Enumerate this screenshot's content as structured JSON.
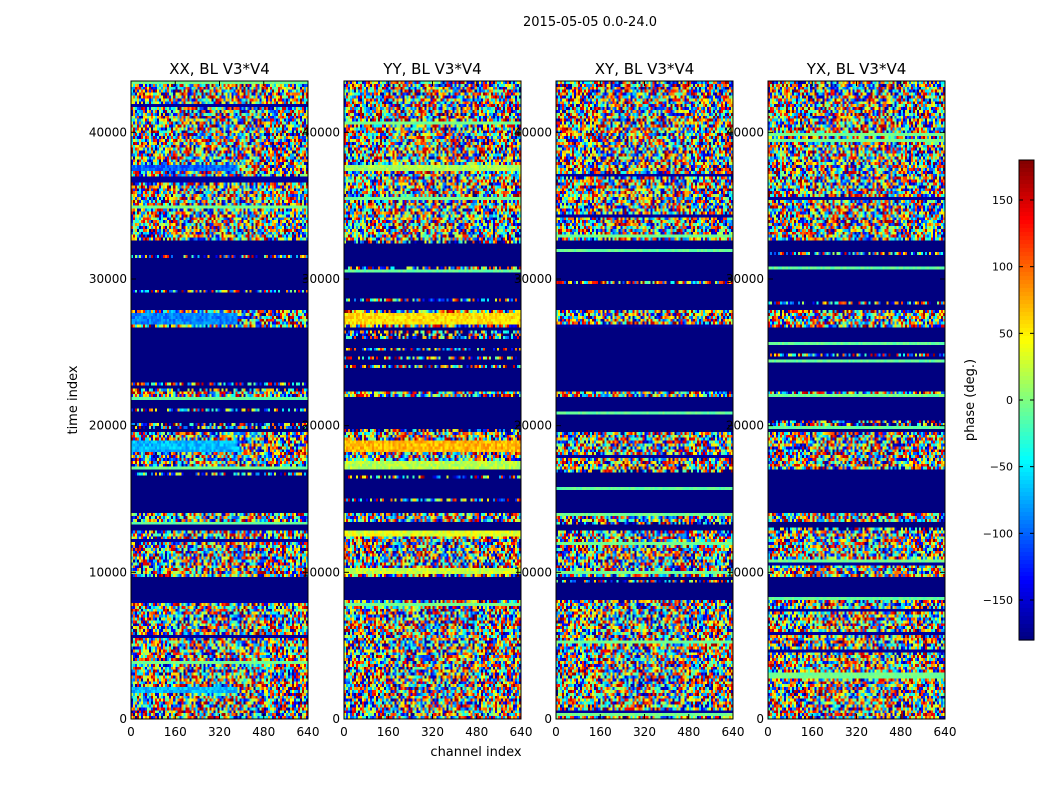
{
  "chart_data": {
    "type": "heatmap",
    "suptitle": "2015-05-05 0.0-24.0",
    "xlabel": "channel index",
    "ylabel": "time index",
    "xlim": [
      0,
      640
    ],
    "ylim": [
      0,
      43500
    ],
    "xticks": [
      0,
      160,
      320,
      480,
      640
    ],
    "yticks": [
      0,
      10000,
      20000,
      30000,
      40000
    ],
    "colormap": "jet",
    "colorbar": {
      "label": "phase (deg.)",
      "vmin": -180,
      "vmax": 180,
      "ticks": [
        -150,
        -100,
        -50,
        0,
        50,
        100,
        150
      ],
      "tick_labels": [
        "−150",
        "−100",
        "−50",
        "0",
        "50",
        "100",
        "150"
      ]
    },
    "panels": [
      {
        "title": "XX, BL V3*V4",
        "bands": [
          {
            "t0": 1750,
            "t1": 2150,
            "phase": -70
          },
          {
            "t0": 18200,
            "t1": 18900,
            "phase": -70
          },
          {
            "t0": 26900,
            "t1": 27600,
            "phase": -90
          },
          {
            "t0": 37300,
            "t1": 37800,
            "phase": -100
          }
        ]
      },
      {
        "title": "YY, BL V3*V4",
        "bands": [
          {
            "t0": 9900,
            "t1": 10300,
            "phase": 25
          },
          {
            "t0": 12400,
            "t1": 12900,
            "phase": 35
          },
          {
            "t0": 17100,
            "t1": 17500,
            "phase": 20
          },
          {
            "t0": 18200,
            "t1": 18900,
            "phase": 70
          },
          {
            "t0": 26900,
            "t1": 27600,
            "phase": 55
          },
          {
            "t0": 37300,
            "t1": 37800,
            "phase": 15
          }
        ]
      },
      {
        "title": "XY, BL V3*V4",
        "bands": []
      },
      {
        "title": "YX, BL V3*V4",
        "bands": []
      }
    ],
    "flagged_ranges": [
      [
        8100,
        9700
      ],
      [
        12800,
        13400
      ],
      [
        14000,
        17000
      ],
      [
        19500,
        21900
      ],
      [
        22300,
        26700
      ],
      [
        27800,
        32700
      ]
    ]
  }
}
